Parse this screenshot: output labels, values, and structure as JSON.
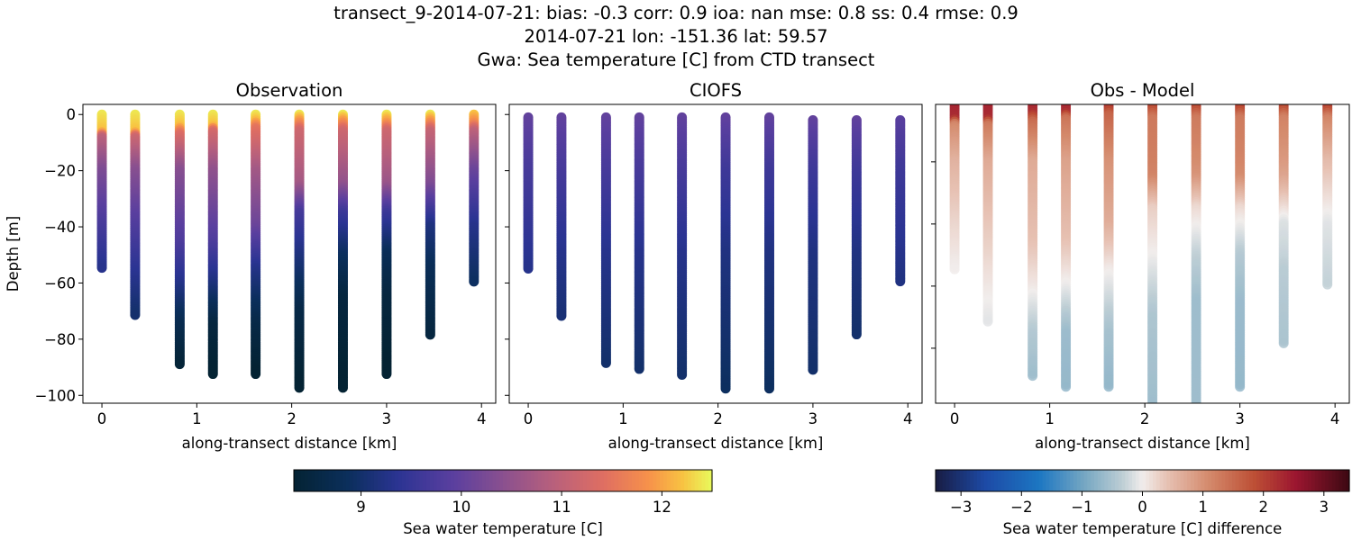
{
  "title_lines": [
    "transect_9-2014-07-21: bias: -0.3  corr: 0.9  ioa: nan  mse: 0.8  ss: 0.4  rmse: 0.9",
    "2014-07-21 lon: -151.36 lat: 59.57",
    "Gwa: Sea temperature [C] from CTD transect"
  ],
  "chart_data": [
    {
      "type": "scatter",
      "title": "Observation",
      "xlabel": "along-transect distance [km]",
      "ylabel": "Depth [m]",
      "xlim": [
        -0.2,
        4.15
      ],
      "ylim": [
        -102.8,
        3.6
      ],
      "xticks": [
        0,
        1,
        2,
        3,
        4
      ],
      "yticks": [
        0,
        -20,
        -40,
        -60,
        -80,
        -100
      ],
      "colormap": "thermal",
      "clim": [
        8.33,
        12.5
      ],
      "casts": [
        {
          "x": 0.0,
          "profile": [
            [
              0,
              12.4
            ],
            [
              6,
              12.2
            ],
            [
              8,
              11.0
            ],
            [
              20,
              10.3
            ],
            [
              40,
              9.7
            ],
            [
              55,
              9.3
            ]
          ]
        },
        {
          "x": 0.35,
          "profile": [
            [
              0,
              12.4
            ],
            [
              6,
              12.2
            ],
            [
              8,
              11.2
            ],
            [
              20,
              10.4
            ],
            [
              40,
              9.8
            ],
            [
              55,
              9.4
            ],
            [
              72,
              9.0
            ]
          ]
        },
        {
          "x": 0.82,
          "profile": [
            [
              0,
              12.4
            ],
            [
              4,
              12.2
            ],
            [
              7,
              11.4
            ],
            [
              20,
              10.4
            ],
            [
              45,
              9.8
            ],
            [
              60,
              9.3
            ],
            [
              75,
              8.7
            ],
            [
              89,
              8.4
            ]
          ]
        },
        {
          "x": 1.17,
          "profile": [
            [
              0,
              12.4
            ],
            [
              4,
              12.2
            ],
            [
              6,
              11.3
            ],
            [
              20,
              10.5
            ],
            [
              45,
              9.8
            ],
            [
              60,
              9.2
            ],
            [
              75,
              8.5
            ],
            [
              93,
              8.3
            ]
          ]
        },
        {
          "x": 1.62,
          "profile": [
            [
              0,
              12.4
            ],
            [
              2,
              12.2
            ],
            [
              5,
              11.5
            ],
            [
              20,
              10.7
            ],
            [
              40,
              10.1
            ],
            [
              55,
              9.3
            ],
            [
              75,
              8.6
            ],
            [
              93,
              8.3
            ]
          ]
        },
        {
          "x": 2.08,
          "profile": [
            [
              0,
              12.4
            ],
            [
              3,
              11.8
            ],
            [
              6,
              11.2
            ],
            [
              25,
              10.7
            ],
            [
              35,
              9.7
            ],
            [
              50,
              9.2
            ],
            [
              70,
              8.6
            ],
            [
              98,
              8.3
            ]
          ]
        },
        {
          "x": 2.54,
          "profile": [
            [
              0,
              12.4
            ],
            [
              3,
              11.8
            ],
            [
              6,
              11.2
            ],
            [
              25,
              10.5
            ],
            [
              35,
              9.6
            ],
            [
              50,
              8.9
            ],
            [
              65,
              8.5
            ],
            [
              98,
              8.3
            ]
          ]
        },
        {
          "x": 3.0,
          "profile": [
            [
              0,
              12.4
            ],
            [
              3,
              11.9
            ],
            [
              6,
              11.2
            ],
            [
              25,
              10.6
            ],
            [
              35,
              9.6
            ],
            [
              50,
              8.8
            ],
            [
              65,
              8.5
            ],
            [
              93,
              8.3
            ]
          ]
        },
        {
          "x": 3.46,
          "profile": [
            [
              0,
              12.4
            ],
            [
              3,
              11.8
            ],
            [
              6,
              11.1
            ],
            [
              25,
              10.3
            ],
            [
              40,
              9.2
            ],
            [
              55,
              8.8
            ],
            [
              79,
              8.5
            ]
          ]
        },
        {
          "x": 3.92,
          "profile": [
            [
              0,
              12.2
            ],
            [
              3,
              11.8
            ],
            [
              6,
              11.0
            ],
            [
              20,
              10.1
            ],
            [
              40,
              9.3
            ],
            [
              60,
              8.9
            ]
          ]
        }
      ]
    },
    {
      "type": "scatter",
      "title": "CIOFS",
      "xlabel": "along-transect distance [km]",
      "xlim": [
        -0.2,
        4.15
      ],
      "ylim": [
        -102.8,
        3.6
      ],
      "xticks": [
        0,
        1,
        2,
        3,
        4
      ],
      "colormap": "thermal",
      "clim": [
        8.33,
        12.5
      ],
      "casts": [
        {
          "x": 0.0,
          "profile": [
            [
              1,
              10.0
            ],
            [
              20,
              9.7
            ],
            [
              55,
              9.3
            ]
          ]
        },
        {
          "x": 0.35,
          "profile": [
            [
              1,
              10.0
            ],
            [
              20,
              9.7
            ],
            [
              50,
              9.3
            ],
            [
              72,
              9.1
            ]
          ]
        },
        {
          "x": 0.82,
          "profile": [
            [
              1,
              10.0
            ],
            [
              20,
              9.7
            ],
            [
              50,
              9.3
            ],
            [
              89,
              9.0
            ]
          ]
        },
        {
          "x": 1.17,
          "profile": [
            [
              1,
              10.0
            ],
            [
              20,
              9.7
            ],
            [
              50,
              9.3
            ],
            [
              91,
              9.0
            ]
          ]
        },
        {
          "x": 1.62,
          "profile": [
            [
              1,
              10.0
            ],
            [
              20,
              9.7
            ],
            [
              50,
              9.3
            ],
            [
              93,
              9.0
            ]
          ]
        },
        {
          "x": 2.08,
          "profile": [
            [
              1,
              10.0
            ],
            [
              20,
              9.6
            ],
            [
              50,
              9.2
            ],
            [
              98,
              8.9
            ]
          ]
        },
        {
          "x": 2.54,
          "profile": [
            [
              1,
              10.0
            ],
            [
              20,
              9.6
            ],
            [
              50,
              9.2
            ],
            [
              98,
              8.9
            ]
          ]
        },
        {
          "x": 3.0,
          "profile": [
            [
              2,
              10.0
            ],
            [
              20,
              9.6
            ],
            [
              50,
              9.2
            ],
            [
              91,
              9.0
            ]
          ]
        },
        {
          "x": 3.46,
          "profile": [
            [
              2,
              10.0
            ],
            [
              20,
              9.6
            ],
            [
              50,
              9.2
            ],
            [
              79,
              9.0
            ]
          ]
        },
        {
          "x": 3.92,
          "profile": [
            [
              2,
              9.9
            ],
            [
              20,
              9.6
            ],
            [
              60,
              9.2
            ]
          ]
        }
      ]
    },
    {
      "type": "scatter",
      "title": "Obs - Model",
      "xlabel": "along-transect distance [km]",
      "xlim": [
        -0.2,
        4.15
      ],
      "ylim": [
        -97.7,
        -1.5
      ],
      "xticks": [
        0,
        1,
        2,
        3,
        4
      ],
      "yticks": [
        -20,
        -40,
        -60,
        -80
      ],
      "colormap": "balance",
      "clim": [
        -3.42,
        3.42
      ]
    }
  ],
  "colorbars": [
    {
      "label": "Sea water temperature [C]",
      "ticks": [
        9,
        10,
        11,
        12
      ],
      "range": [
        8.33,
        12.5
      ],
      "colormap": "thermal"
    },
    {
      "label": "Sea water temperature [C] difference",
      "ticks": [
        -3,
        -2,
        -1,
        0,
        1,
        2,
        3
      ],
      "range": [
        -3.42,
        3.42
      ],
      "colormap": "balance"
    }
  ]
}
